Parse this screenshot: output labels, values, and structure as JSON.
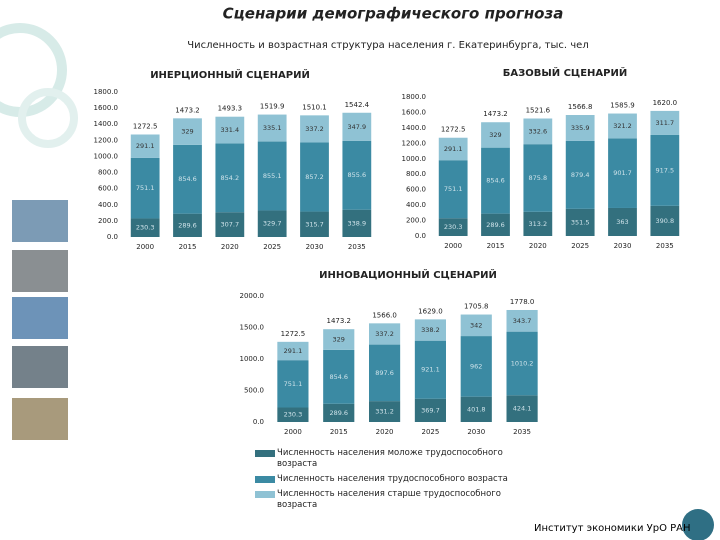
{
  "title": "Сценарии демографического прогноза",
  "subtitle": "Численность и возрастная структура населения г. Екатеринбурга, тыс. чел",
  "footer": "Институт экономики УрО РАН",
  "chart_data": [
    {
      "type": "bar",
      "stacked": true,
      "grid": false,
      "title": "ИНЕРЦИОННЫЙ СЦЕНАРИЙ",
      "categories": [
        "2000",
        "2015",
        "2020",
        "2025",
        "2030",
        "2035"
      ],
      "series": [
        {
          "color": "#33707e",
          "values": [
            230.3,
            289.6,
            307.7,
            329.7,
            315.7,
            338.9
          ]
        },
        {
          "color": "#3b8aa3",
          "values": [
            751.1,
            854.6,
            854.2,
            855.1,
            857.2,
            855.6
          ]
        },
        {
          "color": "#8fc2d4",
          "values": [
            291.1,
            329.0,
            331.4,
            335.1,
            337.2,
            347.9
          ]
        }
      ],
      "totals": [
        1272.5,
        1473.2,
        1493.3,
        1519.9,
        1510.1,
        1542.4
      ],
      "total_labels": [
        "1272.5",
        "1473.2",
        "1493.3",
        "1519.9",
        "1510.1",
        "1542.4"
      ],
      "ylim": [
        0,
        1800
      ],
      "yticks": [
        {
          "value": 0,
          "label": "0.0"
        },
        {
          "value": 200,
          "label": "200.0"
        },
        {
          "value": 400,
          "label": "400.0"
        },
        {
          "value": 600,
          "label": "600.0"
        },
        {
          "value": 800,
          "label": "800.0"
        },
        {
          "value": 1000,
          "label": "1000.0"
        },
        {
          "value": 1200,
          "label": "1200.0"
        },
        {
          "value": 1400,
          "label": "1400.0"
        },
        {
          "value": 1600,
          "label": "1600.0"
        },
        {
          "value": 1800,
          "label": "1800.0"
        }
      ]
    },
    {
      "type": "bar",
      "stacked": true,
      "grid": false,
      "title": "БАЗОВЫЙ СЦЕНАРИЙ",
      "categories": [
        "2000",
        "2015",
        "2020",
        "2025",
        "2030",
        "2035"
      ],
      "series": [
        {
          "color": "#33707e",
          "values": [
            230.3,
            289.6,
            313.2,
            351.5,
            363.0,
            390.8
          ]
        },
        {
          "color": "#3b8aa3",
          "values": [
            751.1,
            854.6,
            875.8,
            879.4,
            901.7,
            917.5
          ]
        },
        {
          "color": "#8fc2d4",
          "values": [
            291.1,
            329.0,
            332.6,
            335.9,
            321.2,
            311.7
          ]
        }
      ],
      "totals": [
        1272.5,
        1473.2,
        1521.6,
        1566.8,
        1585.9,
        1620.0
      ],
      "total_labels": [
        "1272.5",
        "1473.2",
        "1521.6",
        "1566.8",
        "1585.9",
        "1620.0"
      ],
      "ylim": [
        0,
        1800
      ],
      "yticks": [
        {
          "value": 0,
          "label": "0.0"
        },
        {
          "value": 200,
          "label": "200.0"
        },
        {
          "value": 400,
          "label": "400.0"
        },
        {
          "value": 600,
          "label": "600.0"
        },
        {
          "value": 800,
          "label": "800.0"
        },
        {
          "value": 1000,
          "label": "1000.0"
        },
        {
          "value": 1200,
          "label": "1200.0"
        },
        {
          "value": 1400,
          "label": "1400.0"
        },
        {
          "value": 1600,
          "label": "1600.0"
        },
        {
          "value": 1800,
          "label": "1800.0"
        }
      ]
    },
    {
      "type": "bar",
      "stacked": true,
      "grid": false,
      "title": "ИННОВАЦИОННЫЙ СЦЕНАРИЙ",
      "categories": [
        "2000",
        "2015",
        "2020",
        "2025",
        "2030",
        "2035"
      ],
      "series": [
        {
          "name": "Численность населения моложе трудоспособного возраста",
          "color": "#33707e",
          "values": [
            230.3,
            289.6,
            331.2,
            369.7,
            401.8,
            424.1
          ]
        },
        {
          "name": "Численность населения трудоспособного возраста",
          "color": "#3b8aa3",
          "values": [
            751.1,
            854.6,
            897.6,
            921.1,
            962.0,
            1010.2
          ]
        },
        {
          "name": "Численность населения старше трудоспособного возраста",
          "color": "#8fc2d4",
          "values": [
            291.1,
            329.0,
            337.2,
            338.2,
            342.0,
            343.7
          ]
        }
      ],
      "totals": [
        1272.5,
        1473.2,
        1566.0,
        1629.0,
        1705.8,
        1778.0
      ],
      "total_labels": [
        "1272.5",
        "1473.2",
        "1566.0",
        "1629.0",
        "1705.8",
        "1778.0"
      ],
      "ylim": [
        0,
        2000
      ],
      "yticks": [
        {
          "value": 0,
          "label": "0.0"
        },
        {
          "value": 500,
          "label": "500.0"
        },
        {
          "value": 1000,
          "label": "1000.0"
        },
        {
          "value": 1500,
          "label": "1500.0"
        },
        {
          "value": 2000,
          "label": "2000.0"
        }
      ]
    }
  ]
}
